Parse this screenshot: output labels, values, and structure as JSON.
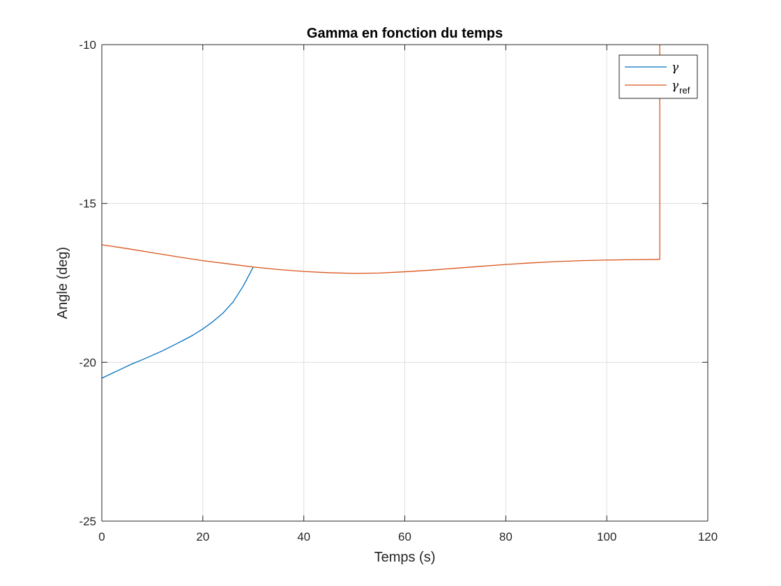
{
  "chart_data": {
    "type": "line",
    "title": "Gamma en fonction du temps",
    "xlabel": "Temps (s)",
    "ylabel": "Angle (deg)",
    "xlim": [
      0,
      120
    ],
    "ylim": [
      -25,
      -10
    ],
    "xticks": [
      0,
      20,
      40,
      60,
      80,
      100,
      120
    ],
    "yticks": [
      -25,
      -20,
      -15,
      -10
    ],
    "grid": true,
    "legend_position": "top-right",
    "series": [
      {
        "name": "γ",
        "legend_base": "γ",
        "legend_sub": "",
        "color": "#0072BD",
        "x": [
          0,
          2,
          4,
          6,
          8,
          10,
          12,
          14,
          16,
          18,
          20,
          22,
          24,
          26,
          27,
          28,
          29,
          30
        ],
        "y": [
          -20.5,
          -20.35,
          -20.2,
          -20.05,
          -19.92,
          -19.78,
          -19.64,
          -19.48,
          -19.32,
          -19.15,
          -18.95,
          -18.72,
          -18.45,
          -18.1,
          -17.85,
          -17.6,
          -17.3,
          -17.0
        ]
      },
      {
        "name": "γref",
        "legend_base": "γ",
        "legend_sub": "ref",
        "color": "#D95319",
        "x": [
          0,
          5,
          10,
          15,
          20,
          25,
          30,
          35,
          40,
          45,
          50,
          55,
          60,
          65,
          70,
          75,
          80,
          85,
          90,
          95,
          100,
          105,
          110.5,
          110.5
        ],
        "y": [
          -16.3,
          -16.42,
          -16.55,
          -16.68,
          -16.8,
          -16.9,
          -17.0,
          -17.08,
          -17.14,
          -17.18,
          -17.2,
          -17.19,
          -17.15,
          -17.1,
          -17.04,
          -16.98,
          -16.92,
          -16.87,
          -16.83,
          -16.8,
          -16.78,
          -16.77,
          -16.76,
          -10
        ]
      }
    ]
  }
}
